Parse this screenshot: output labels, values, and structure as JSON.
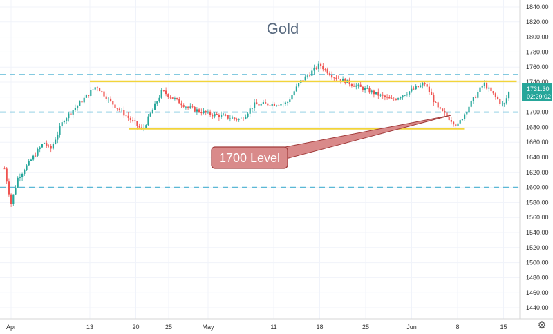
{
  "chart_data": {
    "type": "candlestick",
    "title": "Gold",
    "ylim": [
      1420,
      1850
    ],
    "y_ticks": [
      1440,
      1460,
      1480,
      1500,
      1520,
      1540,
      1560,
      1580,
      1600,
      1620,
      1640,
      1660,
      1680,
      1700,
      1720,
      1740,
      1760,
      1780,
      1800,
      1820,
      1840
    ],
    "y_tick_labels": [
      "1440.00",
      "1460.00",
      "1480.00",
      "1500.00",
      "1520.00",
      "1540.00",
      "1560.00",
      "1580.00",
      "1600.00",
      "1620.00",
      "1640.00",
      "1660.00",
      "1680.00",
      "1700.00",
      "1720.00",
      "1740.00",
      "1760.00",
      "1780.00",
      "1800.00",
      "1820.00",
      "1840.00"
    ],
    "x_ticks": [
      {
        "label": "Apr",
        "date": "2020-04-01"
      },
      {
        "label": "13",
        "date": "2020-04-13"
      },
      {
        "label": "20",
        "date": "2020-04-20"
      },
      {
        "label": "25",
        "date": "2020-04-25"
      },
      {
        "label": "May",
        "date": "2020-05-01"
      },
      {
        "label": "11",
        "date": "2020-05-11"
      },
      {
        "label": "18",
        "date": "2020-05-18"
      },
      {
        "label": "25",
        "date": "2020-05-25"
      },
      {
        "label": "Jun",
        "date": "2020-06-01"
      },
      {
        "label": "8",
        "date": "2020-06-08"
      },
      {
        "label": "15",
        "date": "2020-06-15"
      }
    ],
    "series": [
      {
        "date": "2020-03-31",
        "close": 1625
      },
      {
        "date": "2020-04-01",
        "close": 1578
      },
      {
        "date": "2020-04-02",
        "close": 1612
      },
      {
        "date": "2020-04-06",
        "close": 1660
      },
      {
        "date": "2020-04-07",
        "close": 1650
      },
      {
        "date": "2020-04-09",
        "close": 1690
      },
      {
        "date": "2020-04-14",
        "close": 1735
      },
      {
        "date": "2020-04-16",
        "close": 1715
      },
      {
        "date": "2020-04-21",
        "close": 1676
      },
      {
        "date": "2020-04-24",
        "close": 1728
      },
      {
        "date": "2020-04-28",
        "close": 1706
      },
      {
        "date": "2020-05-01",
        "close": 1698
      },
      {
        "date": "2020-05-06",
        "close": 1690
      },
      {
        "date": "2020-05-08",
        "close": 1710
      },
      {
        "date": "2020-05-13",
        "close": 1712
      },
      {
        "date": "2020-05-15",
        "close": 1740
      },
      {
        "date": "2020-05-18",
        "close": 1763
      },
      {
        "date": "2020-05-20",
        "close": 1748
      },
      {
        "date": "2020-05-25",
        "close": 1730
      },
      {
        "date": "2020-05-29",
        "close": 1716
      },
      {
        "date": "2020-06-03",
        "close": 1738
      },
      {
        "date": "2020-06-05",
        "close": 1705
      },
      {
        "date": "2020-06-08",
        "close": 1682
      },
      {
        "date": "2020-06-10",
        "close": 1712
      },
      {
        "date": "2020-06-12",
        "close": 1738
      },
      {
        "date": "2020-06-15",
        "close": 1708
      },
      {
        "date": "2020-06-16",
        "close": 1731
      }
    ],
    "horizontal_lines": [
      {
        "style": "dashed",
        "color": "#5bb8d6",
        "value": 1750
      },
      {
        "style": "dashed",
        "color": "#5bb8d6",
        "value": 1700
      },
      {
        "style": "dashed",
        "color": "#5bb8d6",
        "value": 1600
      }
    ],
    "trend_lines": [
      {
        "color": "#f2d43a",
        "from": {
          "date": "2020-04-13",
          "value": 1741
        },
        "to": {
          "date": "2020-06-17",
          "value": 1741
        }
      },
      {
        "color": "#f2d43a",
        "from": {
          "date": "2020-04-19",
          "value": 1678
        },
        "to": {
          "date": "2020-06-09",
          "value": 1678
        }
      }
    ],
    "annotation": {
      "text": "1700 Level",
      "target": {
        "date": "2020-06-07",
        "value": 1696
      }
    },
    "current_price": "1731.30",
    "countdown": "02:29:02",
    "colors": {
      "up": "#26a69a",
      "down": "#ef5350",
      "title": "#5a6b80",
      "callout_fill": "#d98a8a",
      "callout_border": "#a03a3a",
      "price_tag": "#26a69a"
    },
    "grid": true
  },
  "toolbar": {
    "settings_icon": "gear-icon"
  }
}
